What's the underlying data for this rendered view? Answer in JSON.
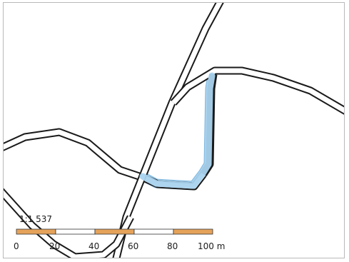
{
  "map": {
    "scale_label": "1:1 537",
    "scale_bar": {
      "ticks": [
        "0",
        "20",
        "40",
        "60",
        "80",
        "100 m"
      ],
      "segments": [
        "filled",
        "empty",
        "filled",
        "empty",
        "filled"
      ]
    },
    "colors": {
      "road_casing": "#1a1a1a",
      "road_fill": "#ffffff",
      "highlight": "#a9d3ef",
      "highlight_edge": "#7fb8e0",
      "scale_fill": "#e5a35a",
      "frame": "#b9b9b9"
    }
  }
}
